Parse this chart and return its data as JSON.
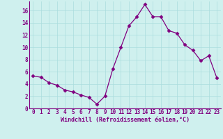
{
  "x": [
    0,
    1,
    2,
    3,
    4,
    5,
    6,
    7,
    8,
    9,
    10,
    11,
    12,
    13,
    14,
    15,
    16,
    17,
    18,
    19,
    20,
    21,
    22,
    23
  ],
  "y": [
    5.3,
    5.1,
    4.2,
    3.8,
    3.0,
    2.7,
    2.2,
    1.8,
    0.7,
    2.0,
    6.5,
    10.0,
    13.5,
    15.0,
    17.0,
    15.0,
    15.0,
    12.7,
    12.3,
    10.4,
    9.5,
    7.8,
    8.6,
    5.0
  ],
  "line_color": "#800080",
  "marker": "D",
  "marker_size": 2.5,
  "bg_color": "#cff0ee",
  "grid_color": "#aadddd",
  "xlabel": "Windchill (Refroidissement éolien,°C)",
  "xlabel_color": "#800080",
  "tick_color": "#800080",
  "ylim": [
    0,
    17.5
  ],
  "xlim": [
    -0.5,
    23.5
  ],
  "yticks": [
    0,
    2,
    4,
    6,
    8,
    10,
    12,
    14,
    16
  ],
  "xticks": [
    0,
    1,
    2,
    3,
    4,
    5,
    6,
    7,
    8,
    9,
    10,
    11,
    12,
    13,
    14,
    15,
    16,
    17,
    18,
    19,
    20,
    21,
    22,
    23
  ],
  "xlabel_fontsize": 6.0,
  "tick_fontsize": 5.5
}
